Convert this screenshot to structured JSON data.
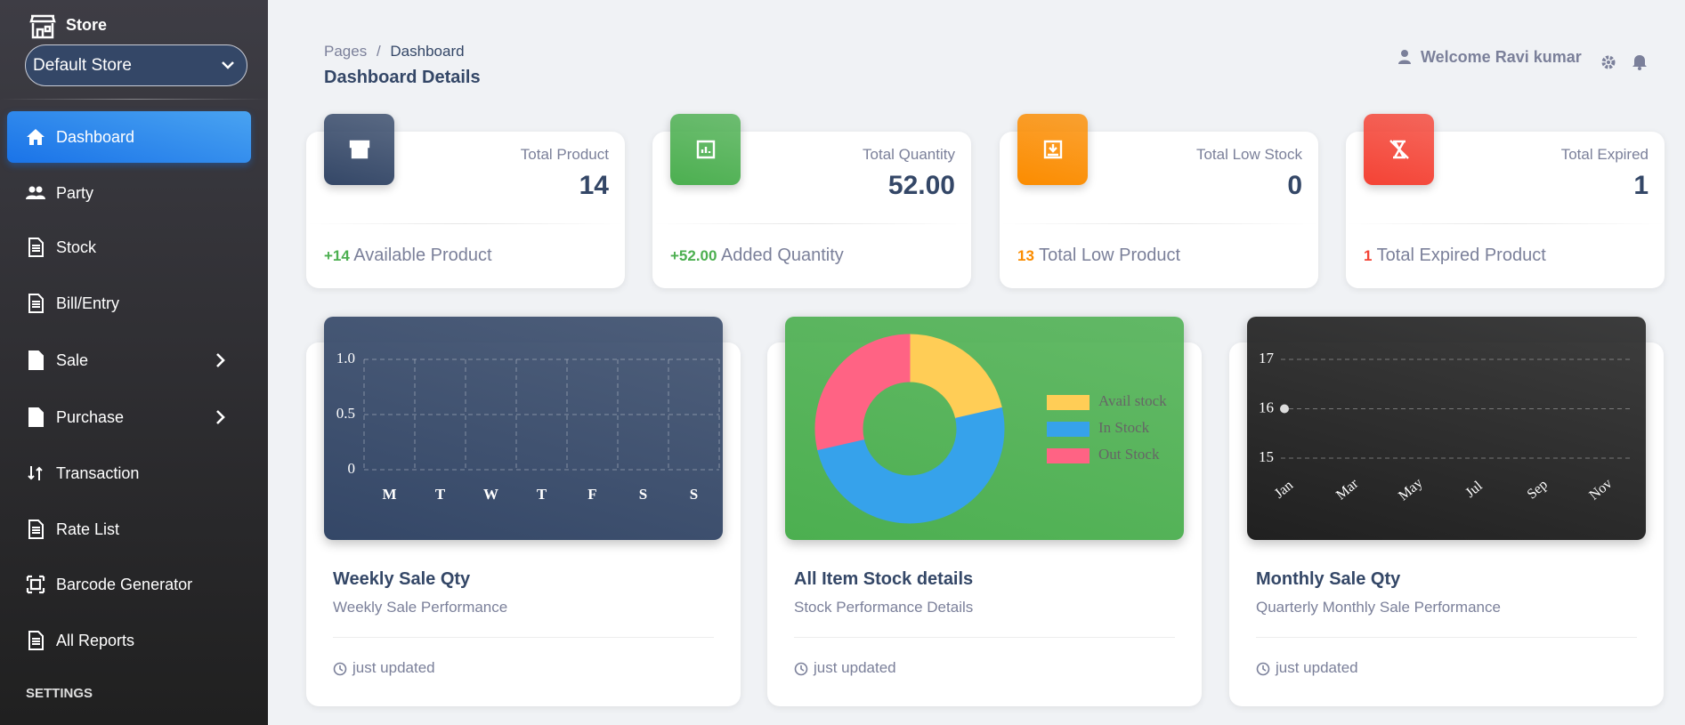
{
  "sidebar": {
    "brand": "Store",
    "store_select": "Default Store",
    "menu": [
      "Dashboard",
      "Party",
      "Stock",
      "Bill/Entry",
      "Sale",
      "Purchase",
      "Transaction",
      "Rate List",
      "Barcode Generator",
      "All Reports"
    ],
    "section": "SETTINGS"
  },
  "header": {
    "breadcrumb": [
      "Pages",
      "Dashboard"
    ],
    "breadcrumb_separator": "/",
    "title": "Dashboard Details",
    "welcome": "Welcome Ravi kumar"
  },
  "stats": [
    {
      "label": "Total Product",
      "value": "14",
      "change": "+14",
      "note": "Available Product",
      "icon_color": "#344767",
      "change_color": "#4caf50"
    },
    {
      "label": "Total Quantity",
      "value": "52.00",
      "change": "+52.00",
      "note": "Added Quantity",
      "icon_color": "#4caf50",
      "change_color": "#4caf50"
    },
    {
      "label": "Total Low Stock",
      "value": "0",
      "change": "13",
      "note": "Total Low Product",
      "icon_color": "#fb8c00",
      "change_color": "#fb8c00"
    },
    {
      "label": "Total Expired",
      "value": "1",
      "change": "1",
      "note": "Total Expired Product",
      "icon_color": "#f44335",
      "change_color": "#f44335"
    }
  ],
  "chart_data": [
    {
      "type": "bar",
      "title": "Weekly Sale Qty",
      "subtitle": "Weekly Sale Performance",
      "note": "just updated",
      "background": "#344767",
      "color": "#ffffff",
      "categories": [
        "M",
        "T",
        "W",
        "T",
        "F",
        "S",
        "S"
      ],
      "values": [
        0,
        0,
        0,
        0,
        0,
        0,
        0
      ],
      "ylim": [
        0,
        1
      ],
      "yticks": [
        0,
        0.5,
        {
          "value": 1,
          "label": "1.0"
        }
      ],
      "grid": true
    },
    {
      "type": "doughnut",
      "title": "All Item Stock details",
      "subtitle": "Stock Performance Details",
      "note": "just updated",
      "background": "#4caf50",
      "categories": [
        "Avail stock",
        "In Stock",
        "Out Stock"
      ],
      "values": [
        3,
        7,
        4
      ],
      "colors": [
        "#ffcd56",
        "#36a2eb",
        "#ff6384"
      ],
      "legend": "right"
    },
    {
      "type": "line",
      "title": "Monthly Sale Qty",
      "subtitle": "Quarterly Monthly Sale Performance",
      "note": "just updated",
      "background": "#202020",
      "color": "#dddddd",
      "categories": [
        "Jan",
        null,
        "Mar",
        null,
        "May",
        null,
        "Jul",
        null,
        "Sep",
        null,
        "Nov",
        null
      ],
      "values": [
        16,
        null,
        null,
        null,
        null,
        null,
        null,
        null,
        null,
        null,
        null,
        null
      ],
      "ylim": [
        15,
        17
      ],
      "yticks": [
        15,
        16,
        17
      ],
      "grid": true
    }
  ]
}
